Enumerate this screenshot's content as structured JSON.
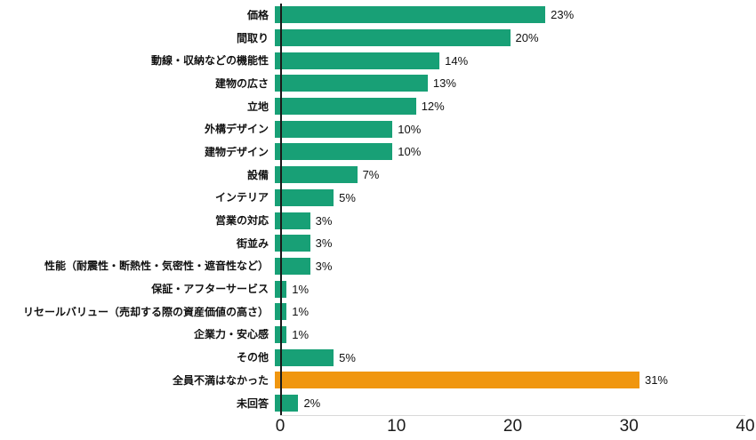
{
  "chart_data": {
    "type": "bar",
    "orientation": "horizontal",
    "title": "",
    "xlabel": "",
    "ylabel": "",
    "categories": [
      "価格",
      "間取り",
      "動線・収納などの機能性",
      "建物の広さ",
      "立地",
      "外構デザイン",
      "建物デザイン",
      "設備",
      "インテリア",
      "営業の対応",
      "街並み",
      "性能（耐震性・断熱性・気密性・遮音性など）",
      "保証・アフターサービス",
      "リセールバリュー（売却する際の資産価値の高さ）",
      "企業力・安心感",
      "その他",
      "全員不満はなかった",
      "未回答"
    ],
    "values": [
      23,
      20,
      14,
      13,
      12,
      10,
      10,
      7,
      5,
      3,
      3,
      3,
      1,
      1,
      1,
      5,
      31,
      2
    ],
    "value_labels": [
      "23%",
      "20%",
      "14%",
      "13%",
      "12%",
      "10%",
      "10%",
      "7%",
      "5%",
      "3%",
      "3%",
      "3%",
      "1%",
      "1%",
      "1%",
      "5%",
      "31%",
      "2%"
    ],
    "xlim": [
      0,
      40
    ],
    "xticks": [
      0,
      10,
      20,
      30,
      40
    ],
    "grid": false,
    "legend": "none",
    "bar_color": "#18a076",
    "highlight_color": "#f0960f",
    "highlight_index": 16
  }
}
